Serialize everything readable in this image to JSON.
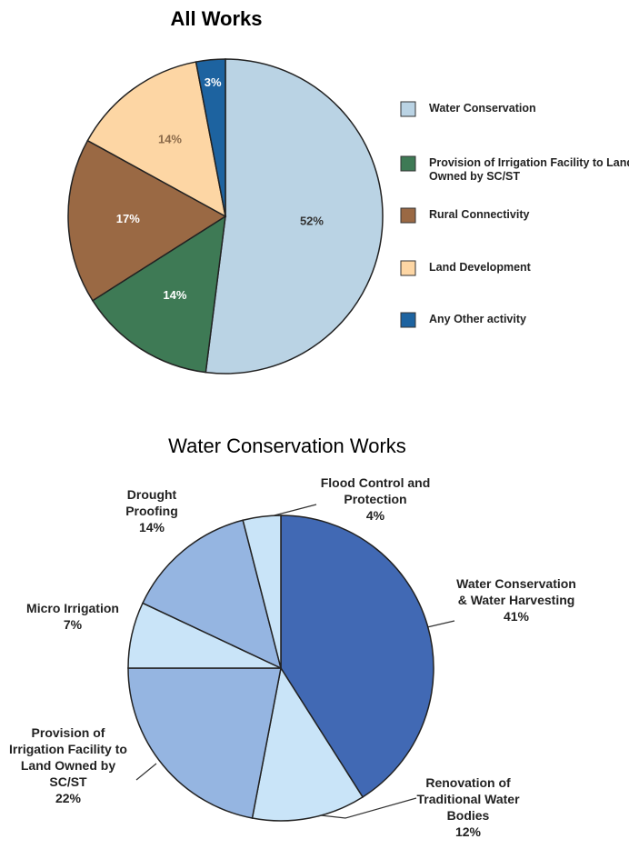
{
  "chart_data": [
    {
      "type": "pie",
      "title": "All Works",
      "categories": [
        "Water Conservation",
        "Provision of Irrigation Facility to Land Owned by SC/ST",
        "Rural Connectivity",
        "Land Development",
        "Any Other activity"
      ],
      "values": [
        52,
        14,
        17,
        14,
        3
      ],
      "value_labels": [
        "52%",
        "14%",
        "17%",
        "14%",
        "3%"
      ],
      "colors": [
        "#bad3e4",
        "#3e7a55",
        "#9a6944",
        "#fdd6a4",
        "#1d63a0"
      ],
      "legend": "right"
    },
    {
      "type": "pie",
      "title": "Water Conservation Works",
      "categories": [
        "Water Conservation & Water Harvesting",
        "Renovation of Traditional Water Bodies",
        "Provision of Irrigation Facility to Land Owned by SC/ST",
        "Micro Irrigation",
        "Drought Proofing",
        "Flood Control and Protection"
      ],
      "values": [
        41,
        12,
        22,
        7,
        14,
        4
      ],
      "value_labels": [
        "41%",
        "12%",
        "22%",
        "7%",
        "14%",
        "4%"
      ],
      "colors": [
        "#4169b4",
        "#c9e4f8",
        "#95b5e1",
        "#c9e4f8",
        "#95b5e1",
        "#c9e4f8"
      ]
    }
  ]
}
